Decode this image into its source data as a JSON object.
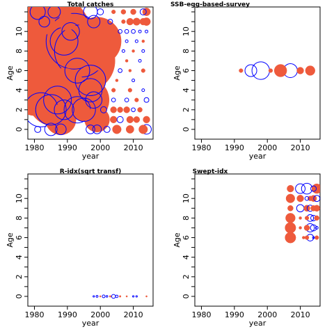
{
  "colors": {
    "positive_fill": "#ee5a3c",
    "negative_stroke": "#0000ff",
    "axis": "#000000",
    "background": "#ffffff"
  },
  "chart_data": [
    {
      "type": "scatter",
      "title": "Total catches",
      "xlabel": "year",
      "ylabel": "Age",
      "xlim": [
        1978,
        2016
      ],
      "ylim": [
        -1,
        12.5
      ],
      "xticks": [
        1980,
        1990,
        2000,
        2010
      ],
      "yticks": [
        0,
        2,
        4,
        6,
        8,
        10
      ],
      "encoding": "bubble radius proportional to sqrt(|residual|); red filled = positive, blue open = negative",
      "points": [
        {
          "x": 1980,
          "y": 9,
          "v": 8.0
        },
        {
          "x": 1982,
          "y": 9,
          "v": 14.0
        },
        {
          "x": 1983,
          "y": 8,
          "v": 9.0
        },
        {
          "x": 1985,
          "y": 8,
          "v": 7.5
        },
        {
          "x": 1984,
          "y": 6,
          "v": 5.5
        },
        {
          "x": 1981,
          "y": 5,
          "v": 6.5
        },
        {
          "x": 1986,
          "y": 3,
          "v": 3.5
        },
        {
          "x": 1995,
          "y": 7,
          "v": 5.0
        },
        {
          "x": 1993,
          "y": 5,
          "v": 4.0
        },
        {
          "x": 1996,
          "y": 3,
          "v": 2.5
        },
        {
          "x": 1989,
          "y": 4,
          "v": 2.5
        },
        {
          "x": 1999,
          "y": 9,
          "v": 3.0
        },
        {
          "x": 1998,
          "y": 8,
          "v": 2.0
        },
        {
          "x": 1988,
          "y": 1,
          "v": 1.2
        },
        {
          "x": 1999,
          "y": 1,
          "v": 0.8
        },
        {
          "x": 1982,
          "y": 11,
          "v": 1.0
        },
        {
          "x": 1990,
          "y": 11,
          "v": 0.4
        },
        {
          "x": 1981,
          "y": 12,
          "v": -0.3
        },
        {
          "x": 1986,
          "y": 12,
          "v": -0.2
        },
        {
          "x": 1997,
          "y": 12,
          "v": -0.25
        },
        {
          "x": 1983,
          "y": 11,
          "v": -0.15
        },
        {
          "x": 1998,
          "y": 11,
          "v": -0.2
        },
        {
          "x": 1991,
          "y": 10,
          "v": -0.4
        },
        {
          "x": 1994,
          "y": 8,
          "v": -3.5
        },
        {
          "x": 1992,
          "y": 9,
          "v": -4.0
        },
        {
          "x": 1989,
          "y": 9,
          "v": -1.0
        },
        {
          "x": 1993,
          "y": 6,
          "v": -0.8
        },
        {
          "x": 1997,
          "y": 5,
          "v": -1.2
        },
        {
          "x": 1997,
          "y": 4,
          "v": -0.7
        },
        {
          "x": 1982,
          "y": 2,
          "v": -1.5
        },
        {
          "x": 1985,
          "y": 2,
          "v": -1.2
        },
        {
          "x": 1987,
          "y": 3,
          "v": -1.0
        },
        {
          "x": 1993,
          "y": 2,
          "v": -0.9
        },
        {
          "x": 1995,
          "y": 2,
          "v": -0.7
        },
        {
          "x": 1989,
          "y": 2,
          "v": -0.5
        },
        {
          "x": 1998,
          "y": 3,
          "v": -0.35
        },
        {
          "x": 1985,
          "y": 0,
          "v": -0.2
        },
        {
          "x": 1988,
          "y": 0,
          "v": -0.15
        },
        {
          "x": 1997,
          "y": 0,
          "v": -0.1
        },
        {
          "x": 1999,
          "y": 0,
          "v": -0.1
        },
        {
          "x": 2002,
          "y": 0,
          "v": -0.05
        },
        {
          "x": 1981,
          "y": 0,
          "v": -0.05
        },
        {
          "x": 2000,
          "y": 12,
          "v": -0.05
        },
        {
          "x": 2003,
          "y": 11,
          "v": -0.03
        },
        {
          "x": 2001,
          "y": 2,
          "v": -0.05
        },
        {
          "x": 2004,
          "y": 12,
          "v": 0.02
        },
        {
          "x": 2007,
          "y": 12,
          "v": 0.03
        },
        {
          "x": 2010,
          "y": 12,
          "v": 0.04
        },
        {
          "x": 2013,
          "y": 12,
          "v": -0.05
        },
        {
          "x": 2014,
          "y": 12,
          "v": 0.08
        },
        {
          "x": 2007,
          "y": 11,
          "v": 0.02
        },
        {
          "x": 2009,
          "y": 11,
          "v": 0.06
        },
        {
          "x": 2011,
          "y": 11,
          "v": 0.07
        },
        {
          "x": 2013,
          "y": 11,
          "v": 0.06
        },
        {
          "x": 2014,
          "y": 11,
          "v": 0.08
        },
        {
          "x": 2006,
          "y": 10,
          "v": -0.02
        },
        {
          "x": 2008,
          "y": 10,
          "v": -0.02
        },
        {
          "x": 2010,
          "y": 10,
          "v": -0.02
        },
        {
          "x": 2012,
          "y": 10,
          "v": -0.01
        },
        {
          "x": 2014,
          "y": 10,
          "v": -0.01
        },
        {
          "x": 2008,
          "y": 9,
          "v": -0.01
        },
        {
          "x": 2011,
          "y": 9,
          "v": -0.01
        },
        {
          "x": 2013,
          "y": 9,
          "v": 0.01
        },
        {
          "x": 2007,
          "y": 8,
          "v": -0.01
        },
        {
          "x": 2010,
          "y": 8,
          "v": 0.01
        },
        {
          "x": 2013,
          "y": 8,
          "v": -0.01
        },
        {
          "x": 2008,
          "y": 7,
          "v": 0.01
        },
        {
          "x": 2012,
          "y": 7,
          "v": -0.01
        },
        {
          "x": 2006,
          "y": 6,
          "v": -0.02
        },
        {
          "x": 2009,
          "y": 6,
          "v": 0.01
        },
        {
          "x": 2013,
          "y": 6,
          "v": 0.02
        },
        {
          "x": 2005,
          "y": 5,
          "v": 0.01
        },
        {
          "x": 2010,
          "y": 5,
          "v": -0.01
        },
        {
          "x": 2004,
          "y": 4,
          "v": 0.02
        },
        {
          "x": 2009,
          "y": 4,
          "v": 0.02
        },
        {
          "x": 2013,
          "y": 4,
          "v": -0.01
        },
        {
          "x": 2004,
          "y": 3,
          "v": -0.02
        },
        {
          "x": 2008,
          "y": 3,
          "v": -0.02
        },
        {
          "x": 2011,
          "y": 3,
          "v": 0.02
        },
        {
          "x": 2014,
          "y": 3,
          "v": -0.03
        },
        {
          "x": 2004,
          "y": 2,
          "v": 0.05
        },
        {
          "x": 2006,
          "y": 2,
          "v": 0.04
        },
        {
          "x": 2008,
          "y": 2,
          "v": 0.05
        },
        {
          "x": 2010,
          "y": 2,
          "v": -0.02
        },
        {
          "x": 2012,
          "y": 2,
          "v": 0.03
        },
        {
          "x": 2004,
          "y": 1,
          "v": 0.06
        },
        {
          "x": 2006,
          "y": 1,
          "v": -0.05
        },
        {
          "x": 2009,
          "y": 1,
          "v": 0.06
        },
        {
          "x": 2011,
          "y": 1,
          "v": 0.05
        },
        {
          "x": 2014,
          "y": 1,
          "v": 0.06
        },
        {
          "x": 2005,
          "y": 0,
          "v": 0.1
        },
        {
          "x": 2009,
          "y": 0,
          "v": 0.08
        },
        {
          "x": 2013,
          "y": 0,
          "v": 0.1
        },
        {
          "x": 2014,
          "y": 0,
          "v": -0.12
        }
      ]
    },
    {
      "type": "scatter",
      "title": "SSB-egg-based-survey",
      "xlabel": "year",
      "ylabel": "Age",
      "xlim": [
        1978,
        2016
      ],
      "ylim": [
        -1,
        12.5
      ],
      "xticks": [
        1980,
        1990,
        2000,
        2010
      ],
      "yticks": [
        0,
        2,
        4,
        6,
        8,
        10
      ],
      "encoding": "bubble radius proportional to sqrt(|residual|); red filled = positive, blue open = negative",
      "points": [
        {
          "x": 1992,
          "y": 6,
          "v": 0.02
        },
        {
          "x": 1995,
          "y": 6,
          "v": -0.18
        },
        {
          "x": 1998,
          "y": 6,
          "v": -0.4
        },
        {
          "x": 2001,
          "y": 6,
          "v": 0.02
        },
        {
          "x": 2004,
          "y": 6,
          "v": 0.2
        },
        {
          "x": 2007,
          "y": 6,
          "v": -0.25
        },
        {
          "x": 2010,
          "y": 6,
          "v": 0.06
        },
        {
          "x": 2013,
          "y": 6,
          "v": 0.12
        }
      ]
    },
    {
      "type": "scatter",
      "title": "R-idx(sqrt transf)",
      "xlabel": "year",
      "ylabel": "Age",
      "xlim": [
        1978,
        2016
      ],
      "ylim": [
        -1,
        12.5
      ],
      "xticks": [
        1980,
        1990,
        2000,
        2010
      ],
      "yticks": [
        0,
        2,
        4,
        6,
        8,
        10
      ],
      "encoding": "bubble radius proportional to sqrt(|residual|); red filled = positive, blue open = negative",
      "points": [
        {
          "x": 1998,
          "y": 0,
          "v": -0.003
        },
        {
          "x": 1999,
          "y": 0,
          "v": -0.005
        },
        {
          "x": 2000,
          "y": 0,
          "v": 0.003
        },
        {
          "x": 2001,
          "y": 0,
          "v": -0.01
        },
        {
          "x": 2002,
          "y": 0,
          "v": -0.004
        },
        {
          "x": 2003,
          "y": 0,
          "v": 0.004
        },
        {
          "x": 2004,
          "y": 0,
          "v": -0.02
        },
        {
          "x": 2005,
          "y": 0,
          "v": -0.008
        },
        {
          "x": 2006,
          "y": 0,
          "v": 0.004
        },
        {
          "x": 2008,
          "y": 0,
          "v": 0.003
        },
        {
          "x": 2010,
          "y": 0,
          "v": -0.003
        },
        {
          "x": 2011,
          "y": 0,
          "v": -0.003
        },
        {
          "x": 2014,
          "y": 0,
          "v": 0.003
        }
      ]
    },
    {
      "type": "scatter",
      "title": "Swept-idx",
      "xlabel": "year",
      "ylabel": "Age",
      "xlim": [
        1978,
        2016
      ],
      "ylim": [
        -1,
        12.5
      ],
      "xticks": [
        1980,
        1990,
        2000,
        2010
      ],
      "yticks": [
        0,
        2,
        4,
        6,
        8,
        10
      ],
      "encoding": "bubble radius proportional to sqrt(|residual|); red filled = positive, blue open = negative",
      "points": [
        {
          "x": 2007,
          "y": 11,
          "v": 0.06
        },
        {
          "x": 2010,
          "y": 11,
          "v": -0.12
        },
        {
          "x": 2012,
          "y": 11,
          "v": -0.15
        },
        {
          "x": 2014,
          "y": 11,
          "v": -0.04
        },
        {
          "x": 2015,
          "y": 11,
          "v": 0.12
        },
        {
          "x": 2007,
          "y": 10,
          "v": 0.1
        },
        {
          "x": 2010,
          "y": 10,
          "v": 0.06
        },
        {
          "x": 2012,
          "y": 10,
          "v": -0.02
        },
        {
          "x": 2013,
          "y": 10,
          "v": 0.03
        },
        {
          "x": 2014,
          "y": 10,
          "v": 0.05
        },
        {
          "x": 2015,
          "y": 10,
          "v": -0.05
        },
        {
          "x": 2007,
          "y": 9,
          "v": 0.04
        },
        {
          "x": 2010,
          "y": 9,
          "v": -0.07
        },
        {
          "x": 2012,
          "y": 9,
          "v": 0.05
        },
        {
          "x": 2013,
          "y": 9,
          "v": -0.05
        },
        {
          "x": 2014,
          "y": 9,
          "v": 0.04
        },
        {
          "x": 2015,
          "y": 9,
          "v": 0.05
        },
        {
          "x": 2007,
          "y": 8,
          "v": 0.12
        },
        {
          "x": 2010,
          "y": 8,
          "v": 0.01
        },
        {
          "x": 2012,
          "y": 8,
          "v": 0.02
        },
        {
          "x": 2013,
          "y": 8,
          "v": -0.06
        },
        {
          "x": 2014,
          "y": 8,
          "v": -0.04
        },
        {
          "x": 2015,
          "y": 8,
          "v": 0.03
        },
        {
          "x": 2007,
          "y": 7,
          "v": 0.15
        },
        {
          "x": 2010,
          "y": 7,
          "v": 0.01
        },
        {
          "x": 2012,
          "y": 7,
          "v": 0.04
        },
        {
          "x": 2013,
          "y": 7,
          "v": -0.09
        },
        {
          "x": 2014,
          "y": 7,
          "v": -0.05
        },
        {
          "x": 2015,
          "y": 7,
          "v": -0.01
        },
        {
          "x": 2007,
          "y": 6,
          "v": 0.15
        },
        {
          "x": 2011,
          "y": 6,
          "v": 0.01
        },
        {
          "x": 2012,
          "y": 6,
          "v": 0.02
        },
        {
          "x": 2013,
          "y": 6,
          "v": -0.06
        },
        {
          "x": 2014,
          "y": 6,
          "v": -0.005
        },
        {
          "x": 2015,
          "y": 6,
          "v": 0.02
        }
      ]
    }
  ]
}
